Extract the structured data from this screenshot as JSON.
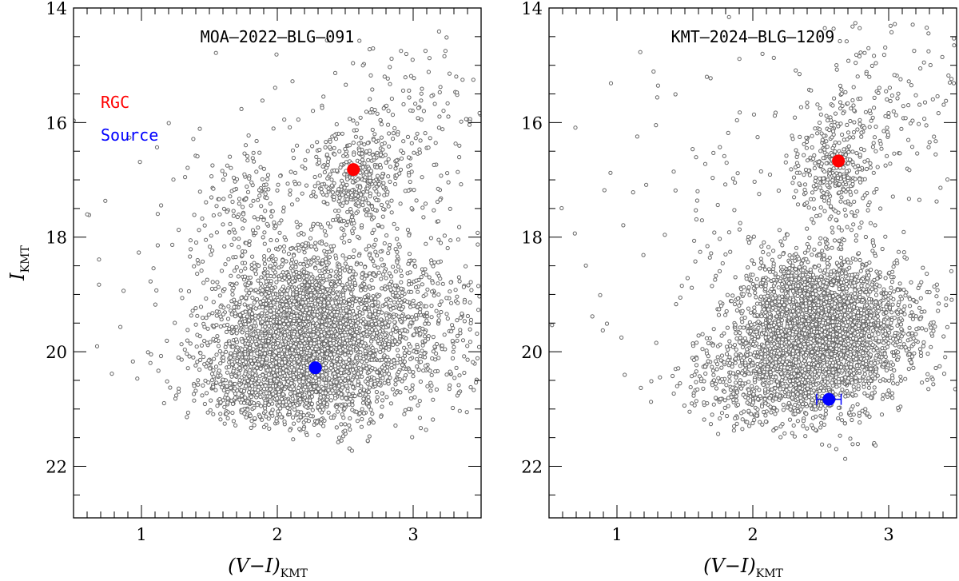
{
  "chart_data": [
    {
      "type": "scatter",
      "title": "MOA–2022–BLG–091",
      "xlabel": {
        "main": "(V−I)",
        "sub": "KMT"
      },
      "ylabel": {
        "main": "I",
        "sub": "KMT"
      },
      "xlim": [
        0.5,
        3.5
      ],
      "ylim": [
        22.9,
        14.0
      ],
      "x_ticks": [
        1,
        2,
        3
      ],
      "x_tick_labels": [
        "1",
        "2",
        "3"
      ],
      "y_ticks": [
        14,
        16,
        18,
        20,
        22
      ],
      "y_tick_labels": [
        "14",
        "16",
        "18",
        "20",
        "22"
      ],
      "field_stars": {
        "name": "field stars",
        "color": "#666666",
        "note_clusters": [
          {
            "cx": 2.2,
            "cy": 19.75,
            "sx": 0.32,
            "sy": 0.75,
            "n": 2600
          },
          {
            "cx": 2.55,
            "cy": 16.95,
            "sx": 0.18,
            "sy": 0.45,
            "n": 380
          },
          {
            "cx": 1.95,
            "cy": 20.6,
            "sx": 0.35,
            "sy": 0.55,
            "n": 600
          },
          {
            "cx": 2.85,
            "cy": 19.5,
            "sx": 0.35,
            "sy": 0.7,
            "n": 700
          },
          {
            "cx": 1.8,
            "cy": 17.5,
            "sx": 0.22,
            "sy": 0.6,
            "n": 150
          },
          {
            "cx": 3.0,
            "cy": 16.2,
            "sx": 0.3,
            "sy": 0.9,
            "n": 180
          },
          {
            "cx": 1.7,
            "cy": 18.5,
            "sx": 0.7,
            "sy": 2.0,
            "n": 150
          }
        ]
      },
      "markers": [
        {
          "name": "RGC",
          "x": 2.56,
          "y": 16.82,
          "color": "#ff0000"
        },
        {
          "name": "Source",
          "x": 2.28,
          "y": 20.28,
          "color": "#0000ff",
          "xerr": 0
        }
      ],
      "legend": {
        "placement": "top-left",
        "entries": [
          {
            "label": "RGC",
            "color": "#ff0000"
          },
          {
            "label": "Source",
            "color": "#0000ff"
          }
        ]
      }
    },
    {
      "type": "scatter",
      "title": "KMT–2024–BLG–1209",
      "xlabel": {
        "main": "(V−I)",
        "sub": "KMT"
      },
      "ylabel": {
        "main": "",
        "sub": ""
      },
      "xlim": [
        0.5,
        3.5
      ],
      "ylim": [
        22.9,
        14.0
      ],
      "x_ticks": [
        1,
        2,
        3
      ],
      "x_tick_labels": [
        "1",
        "2",
        "3"
      ],
      "y_ticks": [
        14,
        16,
        18,
        20,
        22
      ],
      "y_tick_labels": [
        "14",
        "16",
        "18",
        "20",
        "22"
      ],
      "field_stars": {
        "name": "field stars",
        "color": "#666666",
        "note_clusters": [
          {
            "cx": 2.45,
            "cy": 19.7,
            "sx": 0.28,
            "sy": 0.7,
            "n": 2800
          },
          {
            "cx": 2.6,
            "cy": 16.8,
            "sx": 0.15,
            "sy": 0.55,
            "n": 350
          },
          {
            "cx": 2.0,
            "cy": 20.6,
            "sx": 0.3,
            "sy": 0.45,
            "n": 400
          },
          {
            "cx": 2.85,
            "cy": 19.6,
            "sx": 0.3,
            "sy": 0.55,
            "n": 500
          },
          {
            "cx": 3.05,
            "cy": 15.6,
            "sx": 0.3,
            "sy": 0.8,
            "n": 150
          },
          {
            "cx": 1.7,
            "cy": 17.8,
            "sx": 0.55,
            "sy": 2.0,
            "n": 140
          }
        ]
      },
      "markers": [
        {
          "name": "RGC",
          "x": 2.63,
          "y": 16.67,
          "color": "#ff0000"
        },
        {
          "name": "Source",
          "x": 2.56,
          "y": 20.83,
          "color": "#0000ff",
          "xerr": 0.09
        }
      ],
      "legend": null
    }
  ]
}
